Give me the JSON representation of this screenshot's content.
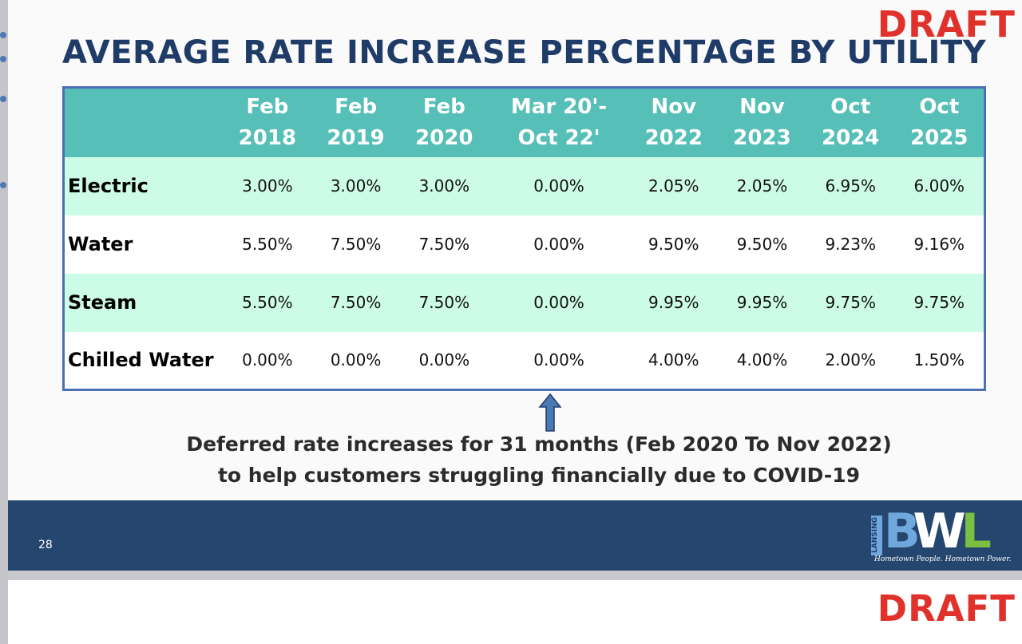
{
  "watermark": "DRAFT",
  "title": "AVERAGE RATE INCREASE PERCENTAGE BY UTILITY",
  "table": {
    "columns": [
      {
        "line1": "Feb",
        "line2": "2018"
      },
      {
        "line1": "Feb",
        "line2": "2019"
      },
      {
        "line1": "Feb",
        "line2": "2020"
      },
      {
        "line1": "Mar 20'-",
        "line2": "Oct 22'"
      },
      {
        "line1": "Nov",
        "line2": "2022"
      },
      {
        "line1": "Nov",
        "line2": "2023"
      },
      {
        "line1": "Oct",
        "line2": "2024"
      },
      {
        "line1": "Oct",
        "line2": "2025"
      }
    ],
    "rows": [
      {
        "label": "Electric",
        "values": [
          "3.00%",
          "3.00%",
          "3.00%",
          "0.00%",
          "2.05%",
          "2.05%",
          "6.95%",
          "6.00%"
        ]
      },
      {
        "label": "Water",
        "values": [
          "5.50%",
          "7.50%",
          "7.50%",
          "0.00%",
          "9.50%",
          "9.50%",
          "9.23%",
          "9.16%"
        ]
      },
      {
        "label": "Steam",
        "values": [
          "5.50%",
          "7.50%",
          "7.50%",
          "0.00%",
          "9.95%",
          "9.95%",
          "9.75%",
          "9.75%"
        ]
      },
      {
        "label": "Chilled Water",
        "values": [
          "0.00%",
          "0.00%",
          "0.00%",
          "0.00%",
          "4.00%",
          "4.00%",
          "2.00%",
          "1.50%"
        ]
      }
    ]
  },
  "note": {
    "line1": "Deferred rate increases for 31 months (Feb 2020 To Nov 2022)",
    "line2": "to help customers struggling financially due to COVID-19"
  },
  "footer": {
    "page_number": "28",
    "logo": {
      "lansing": "LANSING",
      "b": "B",
      "w": "W",
      "l": "L",
      "tagline": "Hometown People. Hometown Power."
    }
  },
  "colors": {
    "title": "#1f3b68",
    "header": "#56bfb8",
    "row_alt": "#ccfbe6",
    "footer": "#25466e",
    "draft": "#e0322b"
  }
}
